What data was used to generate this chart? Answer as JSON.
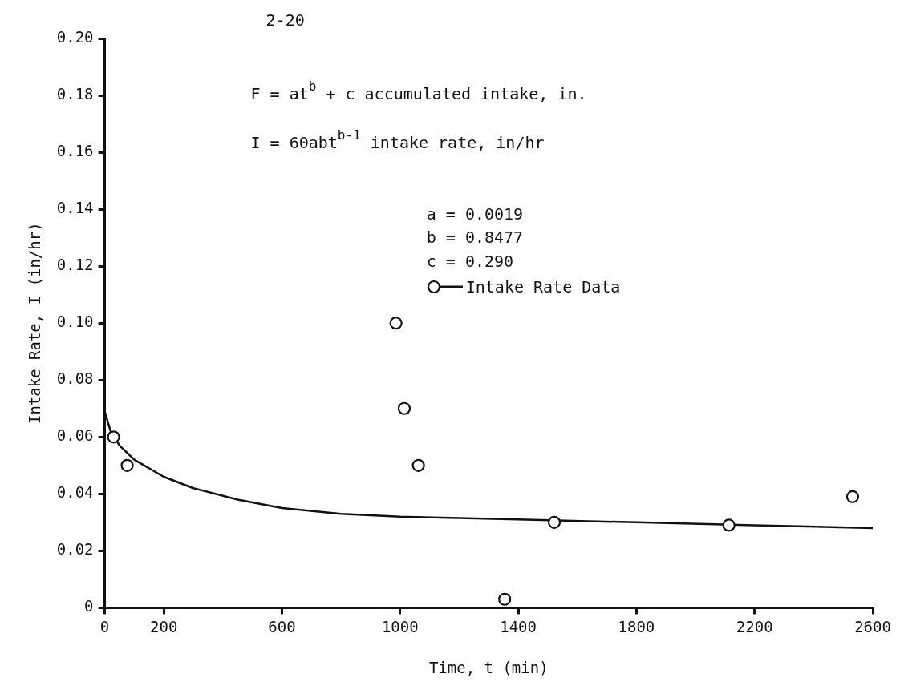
{
  "chart_data": {
    "type": "scatter",
    "xlabel": "Time, t (min)",
    "ylabel": "Intake Rate, I (in/hr)",
    "annotations": [
      "2-20",
      "F = at$^{b}$ + c accumulated intake, in.",
      "I = 60abt$^{b-1}$ intake rate, in/hr",
      "a = 0.0019",
      "b = 0.8477",
      "c = 0.290"
    ],
    "xlim": [
      0,
      2600
    ],
    "xticks": [
      0,
      200,
      600,
      1000,
      1400,
      1800,
      2200,
      2600
    ],
    "ylim": [
      0,
      0.2
    ],
    "yticks": [
      0,
      {
        "value": 0.02,
        "label": "0.02"
      },
      {
        "value": 0.04,
        "label": "0.04"
      },
      {
        "value": 0.06,
        "label": "0.06"
      },
      {
        "value": 0.08,
        "label": "0.08"
      },
      {
        "value": 0.1,
        "label": "0.10"
      },
      {
        "value": 0.12,
        "label": "0.12"
      },
      {
        "value": 0.14,
        "label": "0.14"
      },
      {
        "value": 0.16,
        "label": "0.16"
      },
      {
        "value": 0.18,
        "label": "0.18"
      },
      {
        "value": 0.2,
        "label": "0.20"
      }
    ],
    "grid": false,
    "legend": "top right",
    "marker": "circle",
    "series": [
      {
        "type": "line",
        "color": "#111111",
        "marker": "none",
        "line_style": "solid",
        "x": [
          0,
          20,
          50,
          100,
          200,
          300,
          450,
          600,
          800,
          1000,
          1400,
          1800,
          2200,
          2600
        ],
        "values": [
          0.069,
          0.062,
          0.057,
          0.052,
          0.046,
          0.042,
          0.038,
          0.035,
          0.033,
          0.032,
          0.031,
          0.03,
          0.029,
          0.028
        ]
      },
      {
        "name": "Intake Rate Data",
        "color": "#111111",
        "x": [
          30,
          76,
          986,
          1014,
          1062,
          1354,
          1522,
          2113,
          2532
        ],
        "values": [
          0.06,
          0.05,
          0.1,
          0.07,
          0.05,
          0.003,
          0.03,
          0.029,
          0.039
        ]
      }
    ]
  }
}
